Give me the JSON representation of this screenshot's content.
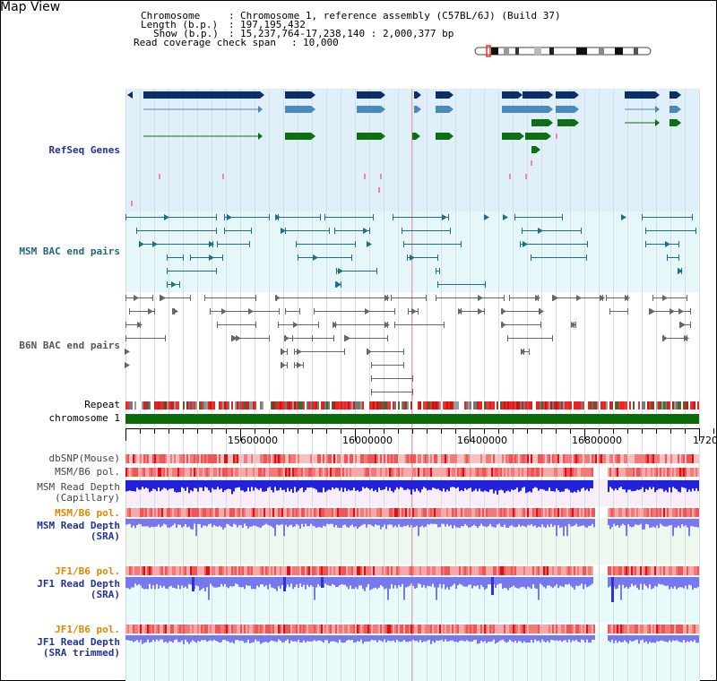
{
  "page": {
    "title": "Map View"
  },
  "info": {
    "chromosome_label": "Chromosome",
    "chromosome_value": "Chromosome 1, reference assembly (C57BL/6J) (Build 37)",
    "length_label": "Length (b.p.)",
    "length_value": "197,195,432",
    "show_label": "Show (b.p.)",
    "show_value": "15,237,764-17,238,140 : 2,000,377 bp",
    "coverage_label": "Read coverage check span",
    "coverage_value": "10,000"
  },
  "tracks": {
    "refseq": "RefSeq Genes",
    "msm_bac": "MSM BAC end pairs",
    "b6n_bac": "B6N BAC end pairs",
    "repeat": "Repeat",
    "chromosome": "chromosome 1",
    "dbsnp": "dbSNP(Mouse)",
    "msm_b6_pol": "MSM/B6 pol.",
    "msm_depth_cap_1": "MSM Read Depth",
    "msm_depth_cap_2": "(Capillary)",
    "msm_b6_pol_2": "MSM/B6 pol.",
    "msm_depth_sra_1": "MSM Read Depth",
    "msm_depth_sra_2": "(SRA)",
    "jf1_b6_pol": "JF1/B6 pol.",
    "jf1_depth_sra_1": "JF1 Read Depth",
    "jf1_depth_sra_2": "(SRA)",
    "jf1_b6_pol_2": "JF1/B6 pol.",
    "jf1_depth_trim_1": "JF1 Read Depth",
    "jf1_depth_trim_2": "(SRA trimmed)"
  },
  "axis": {
    "ticks": [
      "15600000",
      "16000000",
      "16400000",
      "16800000",
      "1720"
    ]
  },
  "colors": {
    "refseq_bg": "#dff0fa",
    "msm_bg": "#e6f7f9",
    "navy": "#0a2e66",
    "steel": "#4a8ab8",
    "green": "#0e6e12",
    "pink": "#ee88aa",
    "bac_msm": "#1b6f8a",
    "bac_b6n": "#666666",
    "chrom_green": "#0b6b0b",
    "snp_red": "#ee5555",
    "depth_blue": "#2222dd",
    "depth_violet": "#7777ee"
  }
}
